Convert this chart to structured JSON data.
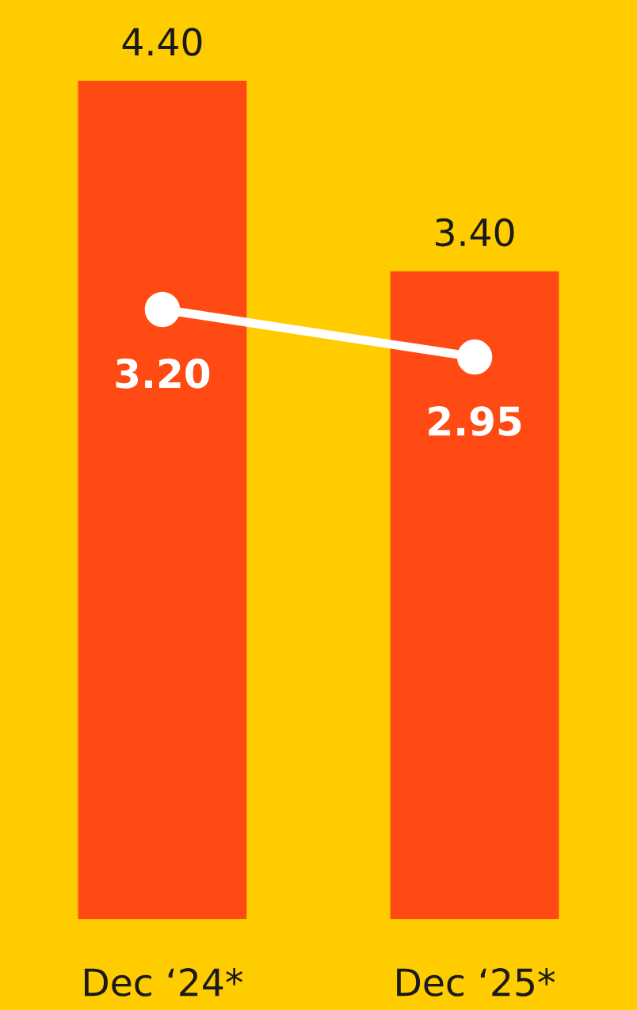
{
  "chart_data": {
    "type": "bar",
    "categories": [
      "Dec ‘24*",
      "Dec ‘25*"
    ],
    "series": [
      {
        "color": "#ff4a14",
        "values": [
          4.4,
          3.4
        ],
        "value_labels": [
          "4.40",
          "3.40"
        ]
      },
      {
        "type": "line",
        "color": "#ffffff",
        "values": [
          3.2,
          2.95
        ],
        "value_labels": [
          "3.20",
          "2.95"
        ],
        "marker": "circle",
        "line_style": "solid"
      }
    ],
    "grid": false,
    "legend": false
  }
}
